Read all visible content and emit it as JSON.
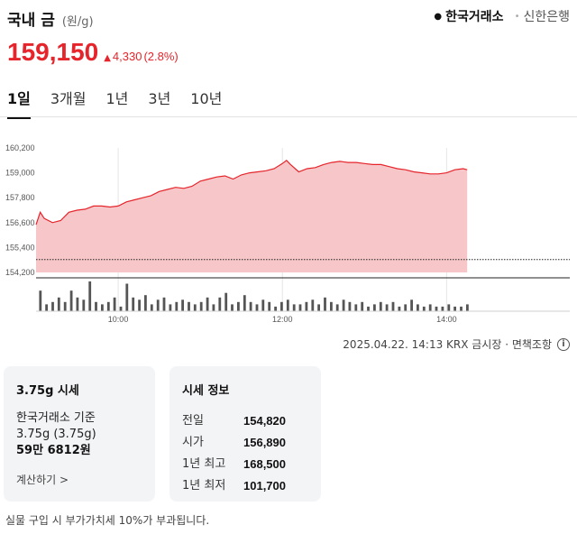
{
  "header": {
    "title": "국내 금",
    "unit": "(원/g)"
  },
  "sources": [
    {
      "label": "한국거래소",
      "active": true
    },
    {
      "label": "신한은행",
      "active": false
    }
  ],
  "price": {
    "current": "159,150",
    "change": "4,330",
    "change_pct": "(2.8%)",
    "direction": "up",
    "color": "#e5242b"
  },
  "tabs": [
    {
      "label": "1일",
      "active": true
    },
    {
      "label": "3개월",
      "active": false
    },
    {
      "label": "1년",
      "active": false
    },
    {
      "label": "3년",
      "active": false
    },
    {
      "label": "10년",
      "active": false
    }
  ],
  "chart_data": {
    "type": "area",
    "y_ticks": [
      "160,200",
      "159,000",
      "157,800",
      "156,600",
      "155,400",
      "154,200"
    ],
    "ylim": [
      154200,
      160200
    ],
    "x_ticks": [
      "10:00",
      "12:00",
      "14:00"
    ],
    "x_range": [
      "09:00",
      "15:30"
    ],
    "x_tick_times": [
      10,
      12,
      14
    ],
    "baseline": 154820,
    "line_color": "#e5242b",
    "fill_color": "#f7c6c8",
    "series": [
      {
        "x": [
          9.0,
          9.05,
          9.1,
          9.2,
          9.3,
          9.4,
          9.5,
          9.6,
          9.7,
          9.8,
          9.9,
          10.0,
          10.1,
          10.2,
          10.3,
          10.4,
          10.5,
          10.6,
          10.7,
          10.8,
          10.9,
          11.0,
          11.1,
          11.2,
          11.3,
          11.4,
          11.5,
          11.6,
          11.7,
          11.8,
          11.9,
          12.0,
          12.05,
          12.1,
          12.2,
          12.3,
          12.4,
          12.5,
          12.6,
          12.7,
          12.8,
          12.9,
          13.0,
          13.1,
          13.2,
          13.3,
          13.4,
          13.5,
          13.6,
          13.7,
          13.8,
          13.9,
          14.0,
          14.1,
          14.2,
          14.25
        ],
        "values": [
          156500,
          157100,
          156800,
          156600,
          156700,
          157100,
          157200,
          157250,
          157400,
          157400,
          157350,
          157400,
          157600,
          157700,
          157800,
          157900,
          158100,
          158200,
          158300,
          158250,
          158350,
          158600,
          158700,
          158800,
          158850,
          158700,
          158900,
          159000,
          159050,
          159100,
          159200,
          159450,
          159600,
          159400,
          159050,
          159200,
          159250,
          159400,
          159500,
          159550,
          159500,
          159500,
          159450,
          159400,
          159400,
          159300,
          159200,
          159150,
          159050,
          159000,
          158950,
          158950,
          159000,
          159150,
          159200,
          159150
        ]
      }
    ],
    "volume": [
      9,
      3,
      4,
      6,
      4,
      9,
      6,
      5,
      13,
      4,
      3,
      4,
      6,
      2,
      12,
      6,
      5,
      7,
      3,
      5,
      6,
      3,
      4,
      5,
      4,
      3,
      4,
      6,
      3,
      6,
      8,
      3,
      4,
      7,
      4,
      3,
      5,
      4,
      2,
      4,
      5,
      3,
      3,
      4,
      5,
      3,
      6,
      4,
      3,
      5,
      4,
      3,
      4,
      2,
      3,
      4,
      3,
      4,
      2,
      3,
      5,
      3,
      2,
      3,
      2,
      2,
      3,
      2,
      2,
      3
    ]
  },
  "timestamp": "2025.04.22. 14:13 KRX 금시장 · 면책조항",
  "card1": {
    "title": "3.75g 시세",
    "basis": "한국거래소 기준",
    "weight": "3.75g (3.75g)",
    "price": "59만 6812원",
    "link": "계산하기 >"
  },
  "card2": {
    "title": "시세 정보",
    "rows": [
      {
        "label": "전일",
        "value": "154,820"
      },
      {
        "label": "시가",
        "value": "156,890"
      },
      {
        "label": "1년 최고",
        "value": "168,500"
      },
      {
        "label": "1년 최저",
        "value": "101,700"
      }
    ]
  },
  "footnote": "실물 구입 시 부가가치세 10%가 부과됩니다."
}
